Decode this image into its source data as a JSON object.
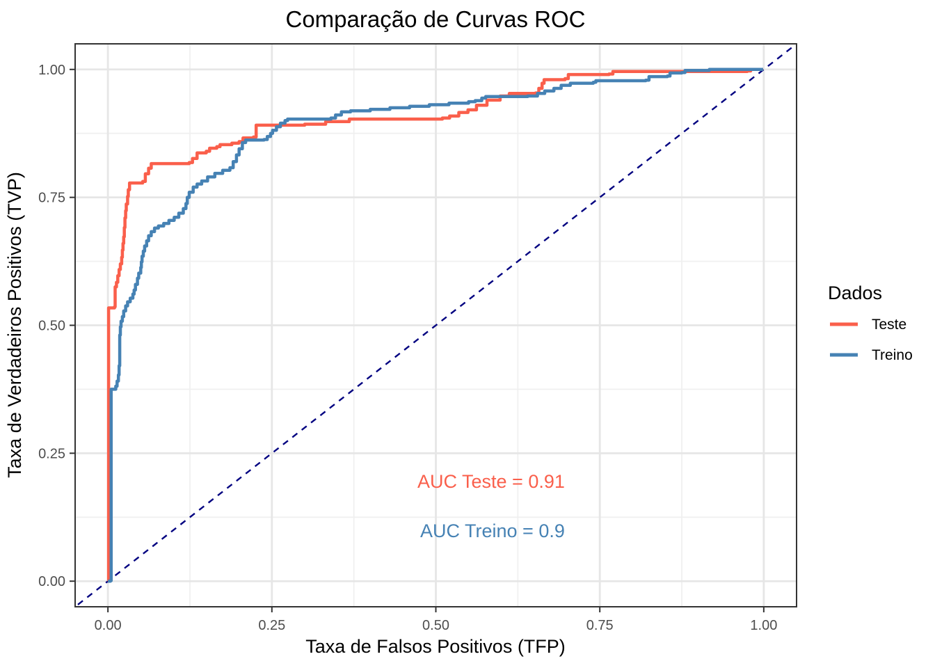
{
  "chart_data": {
    "type": "line",
    "title": "Comparação de Curvas ROC",
    "xlabel": "Taxa de Falsos Positivos (TFP)",
    "ylabel": "Taxa de Verdadeiros Positivos (TVP)",
    "xlim": [
      -0.05,
      1.05
    ],
    "ylim": [
      -0.05,
      1.05
    ],
    "grid": {
      "major": true,
      "minor": true,
      "major_color": "#e6e6e6",
      "minor_color": "#f0f0f0"
    },
    "panel": {
      "background": "#ffffff",
      "border_color": "#333333"
    },
    "x_ticks": {
      "values": [
        0,
        0.25,
        0.5,
        0.75,
        1
      ],
      "labels": [
        "0.00",
        "0.25",
        "0.50",
        "0.75",
        "1.00"
      ]
    },
    "y_ticks": {
      "values": [
        0,
        0.25,
        0.5,
        0.75,
        1
      ],
      "labels": [
        "0.00",
        "0.25",
        "0.50",
        "0.75",
        "1.00"
      ]
    },
    "legend": {
      "title": "Dados",
      "position": "right",
      "entries": [
        {
          "label": "Teste",
          "color": "#fa5f4b"
        },
        {
          "label": "Treino",
          "color": "#4682b4"
        }
      ]
    },
    "reference_line": {
      "style": "dashed",
      "color": "#000080",
      "points": [
        [
          -0.06,
          -0.06
        ],
        [
          1.06,
          1.06
        ]
      ]
    },
    "annotations": [
      {
        "text": "AUC Teste = 0.91",
        "color": "#fa5f4b",
        "x": 0.472,
        "y": 0.197
      },
      {
        "text": "AUC Treino = 0.9",
        "color": "#4682b4",
        "x": 0.476,
        "y": 0.099
      }
    ],
    "series": [
      {
        "name": "Teste",
        "color": "#fa5f4b",
        "auc": 0.91,
        "step": true,
        "points": [
          [
            0.0,
            0.0
          ],
          [
            0.001,
            0.534
          ],
          [
            0.01,
            0.536
          ],
          [
            0.011,
            0.575
          ],
          [
            0.013,
            0.584
          ],
          [
            0.015,
            0.597
          ],
          [
            0.017,
            0.609
          ],
          [
            0.019,
            0.62
          ],
          [
            0.021,
            0.633
          ],
          [
            0.022,
            0.647
          ],
          [
            0.023,
            0.66
          ],
          [
            0.024,
            0.673
          ],
          [
            0.025,
            0.691
          ],
          [
            0.026,
            0.71
          ],
          [
            0.027,
            0.724
          ],
          [
            0.028,
            0.737
          ],
          [
            0.03,
            0.752
          ],
          [
            0.031,
            0.765
          ],
          [
            0.033,
            0.778
          ],
          [
            0.053,
            0.781
          ],
          [
            0.057,
            0.796
          ],
          [
            0.062,
            0.807
          ],
          [
            0.066,
            0.816
          ],
          [
            0.124,
            0.818
          ],
          [
            0.129,
            0.826
          ],
          [
            0.136,
            0.837
          ],
          [
            0.15,
            0.84
          ],
          [
            0.155,
            0.846
          ],
          [
            0.166,
            0.849
          ],
          [
            0.171,
            0.853
          ],
          [
            0.189,
            0.856
          ],
          [
            0.2,
            0.859
          ],
          [
            0.206,
            0.866
          ],
          [
            0.222,
            0.868
          ],
          [
            0.226,
            0.891
          ],
          [
            0.3,
            0.893
          ],
          [
            0.332,
            0.898
          ],
          [
            0.368,
            0.903
          ],
          [
            0.51,
            0.905
          ],
          [
            0.521,
            0.909
          ],
          [
            0.535,
            0.916
          ],
          [
            0.549,
            0.921
          ],
          [
            0.562,
            0.93
          ],
          [
            0.578,
            0.94
          ],
          [
            0.598,
            0.948
          ],
          [
            0.612,
            0.953
          ],
          [
            0.652,
            0.954
          ],
          [
            0.657,
            0.963
          ],
          [
            0.662,
            0.973
          ],
          [
            0.665,
            0.98
          ],
          [
            0.697,
            0.982
          ],
          [
            0.702,
            0.99
          ],
          [
            0.764,
            0.991
          ],
          [
            0.77,
            0.996
          ],
          [
            0.975,
            0.997
          ],
          [
            0.98,
            1.0
          ],
          [
            0.999,
            1.0
          ]
        ]
      },
      {
        "name": "Treino",
        "color": "#4682b4",
        "auc": 0.9,
        "step": true,
        "points": [
          [
            0.0,
            0.0
          ],
          [
            0.004,
            0.001
          ],
          [
            0.005,
            0.375
          ],
          [
            0.012,
            0.381
          ],
          [
            0.014,
            0.391
          ],
          [
            0.016,
            0.403
          ],
          [
            0.017,
            0.421
          ],
          [
            0.018,
            0.481
          ],
          [
            0.019,
            0.497
          ],
          [
            0.02,
            0.508
          ],
          [
            0.022,
            0.517
          ],
          [
            0.024,
            0.528
          ],
          [
            0.027,
            0.538
          ],
          [
            0.03,
            0.546
          ],
          [
            0.034,
            0.553
          ],
          [
            0.038,
            0.561
          ],
          [
            0.04,
            0.569
          ],
          [
            0.042,
            0.58
          ],
          [
            0.045,
            0.592
          ],
          [
            0.047,
            0.602
          ],
          [
            0.05,
            0.613
          ],
          [
            0.051,
            0.624
          ],
          [
            0.052,
            0.635
          ],
          [
            0.054,
            0.645
          ],
          [
            0.056,
            0.655
          ],
          [
            0.059,
            0.665
          ],
          [
            0.062,
            0.675
          ],
          [
            0.066,
            0.683
          ],
          [
            0.071,
            0.69
          ],
          [
            0.077,
            0.694
          ],
          [
            0.085,
            0.699
          ],
          [
            0.093,
            0.705
          ],
          [
            0.101,
            0.711
          ],
          [
            0.108,
            0.719
          ],
          [
            0.115,
            0.728
          ],
          [
            0.119,
            0.738
          ],
          [
            0.121,
            0.75
          ],
          [
            0.124,
            0.76
          ],
          [
            0.13,
            0.77
          ],
          [
            0.136,
            0.776
          ],
          [
            0.143,
            0.782
          ],
          [
            0.152,
            0.79
          ],
          [
            0.163,
            0.797
          ],
          [
            0.175,
            0.803
          ],
          [
            0.186,
            0.808
          ],
          [
            0.191,
            0.82
          ],
          [
            0.196,
            0.833
          ],
          [
            0.2,
            0.845
          ],
          [
            0.205,
            0.857
          ],
          [
            0.21,
            0.862
          ],
          [
            0.238,
            0.863
          ],
          [
            0.243,
            0.869
          ],
          [
            0.248,
            0.875
          ],
          [
            0.251,
            0.881
          ],
          [
            0.257,
            0.888
          ],
          [
            0.263,
            0.895
          ],
          [
            0.27,
            0.9
          ],
          [
            0.274,
            0.903
          ],
          [
            0.34,
            0.905
          ],
          [
            0.347,
            0.911
          ],
          [
            0.356,
            0.917
          ],
          [
            0.37,
            0.919
          ],
          [
            0.4,
            0.922
          ],
          [
            0.43,
            0.925
          ],
          [
            0.46,
            0.928
          ],
          [
            0.49,
            0.931
          ],
          [
            0.52,
            0.934
          ],
          [
            0.55,
            0.937
          ],
          [
            0.56,
            0.939
          ],
          [
            0.57,
            0.944
          ],
          [
            0.576,
            0.947
          ],
          [
            0.64,
            0.948
          ],
          [
            0.655,
            0.953
          ],
          [
            0.666,
            0.958
          ],
          [
            0.68,
            0.963
          ],
          [
            0.691,
            0.969
          ],
          [
            0.705,
            0.973
          ],
          [
            0.74,
            0.975
          ],
          [
            0.744,
            0.978
          ],
          [
            0.82,
            0.979
          ],
          [
            0.825,
            0.986
          ],
          [
            0.853,
            0.987
          ],
          [
            0.857,
            0.993
          ],
          [
            0.875,
            0.994
          ],
          [
            0.88,
            0.998
          ],
          [
            0.913,
            0.998
          ],
          [
            0.917,
            1.0
          ],
          [
            0.999,
            1.0
          ]
        ]
      }
    ]
  }
}
